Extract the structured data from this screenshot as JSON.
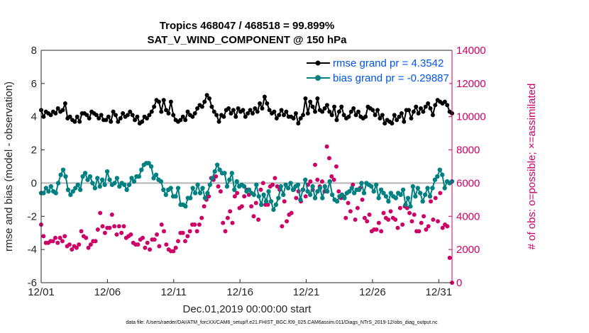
{
  "chart_data": {
    "type": "line",
    "title_line1": "Tropics 468047 / 468518 = 99.899%",
    "title_line2": "SAT_V_WIND_COMPONENT @ 150 hPa",
    "xlabel": "Dec.01,2019 00:00:00 start",
    "ylabel_left": "rmse and bias (model - observation)",
    "ylabel_right": "# of obs: o=possible; ×=assimilated",
    "footnote": "data file: /Users/raeder/DAI/ATM_forcXX/CAM6_setup/f.e21.FHIST_BGC.f09_025.CAM6assim.011/Diags_NTrS_2019-12/obs_diag_output.nc",
    "xlim": [
      1,
      32
    ],
    "ylim_left": [
      -6,
      8
    ],
    "ylim_right": [
      0,
      14000
    ],
    "x_ticks": [
      1,
      6,
      11,
      16,
      21,
      26,
      31
    ],
    "x_tick_labels": [
      "12/01",
      "12/06",
      "12/11",
      "12/16",
      "12/21",
      "12/26",
      "12/31"
    ],
    "y_ticks_left": [
      -6,
      -4,
      -2,
      0,
      2,
      4,
      6,
      8
    ],
    "y_tick_labels_left": [
      "-6",
      "-4",
      "-2",
      "0",
      "2",
      "4",
      "6",
      "8"
    ],
    "y_ticks_right": [
      0,
      2000,
      4000,
      6000,
      8000,
      10000,
      12000,
      14000
    ],
    "y_tick_labels_right": [
      "0",
      "2000",
      "4000",
      "6000",
      "8000",
      "10000",
      "12000",
      "14000"
    ],
    "series": [
      {
        "name": "rmse grand pr = 4.3542",
        "color": "#000000",
        "axis": "left",
        "values": [
          4.4,
          4.0,
          4.3,
          4.2,
          4.1,
          4.3,
          4.2,
          4.5,
          4.3,
          4.4,
          4.8,
          3.9,
          4.0,
          3.8,
          3.7,
          4.0,
          3.7,
          4.2,
          4.2,
          4.1,
          3.9,
          4.3,
          4.2,
          4.1,
          3.9,
          4.1,
          3.8,
          3.8,
          4.0,
          3.7,
          4.3,
          4.1,
          3.7,
          3.9,
          4.2,
          4.0,
          4.1,
          4.3,
          4.1,
          3.8,
          4.0,
          3.6,
          3.7,
          4.0,
          3.9,
          4.1,
          4.3,
          4.6,
          5.0,
          4.9,
          4.3,
          5.0,
          4.4,
          4.2,
          4.9,
          4.1,
          3.8,
          3.7,
          3.8,
          4.0,
          3.8,
          4.3,
          4.1,
          4.0,
          4.2,
          4.5,
          4.7,
          4.6,
          4.9,
          5.3,
          5.1,
          4.6,
          4.3,
          4.1,
          3.7,
          4.1,
          4.0,
          4.4,
          4.5,
          4.2,
          4.4,
          4.0,
          4.5,
          4.3,
          4.4,
          4.0,
          4.2,
          4.4,
          4.2,
          4.5,
          4.3,
          4.8,
          4.5,
          5.2,
          4.8,
          4.4,
          4.2,
          4.3,
          3.9,
          4.1,
          4.4,
          4.1,
          4.3,
          4.0,
          4.0,
          3.9,
          4.2,
          3.6,
          3.9,
          4.1,
          5.1,
          4.2,
          4.9,
          4.6,
          4.3,
          5.1,
          4.4,
          4.3,
          4.5,
          4.7,
          4.3,
          4.1,
          4.6,
          3.8,
          4.3,
          4.6,
          4.1,
          3.9,
          4.0,
          4.3,
          4.5,
          4.1,
          4.3,
          4.0,
          3.9,
          4.0,
          4.6,
          4.5,
          4.4,
          4.1,
          4.4,
          3.9,
          4.1,
          3.6,
          3.8,
          3.7,
          3.6,
          4.1,
          3.8,
          4.0,
          4.2,
          3.7,
          4.4,
          4.4,
          3.9,
          4.3,
          4.6,
          4.2,
          4.5,
          4.3,
          4.6,
          4.8,
          4.5,
          4.1,
          4.7,
          5.0,
          4.9,
          4.8,
          4.9,
          4.7,
          4.3,
          4.2
        ]
      },
      {
        "name": "bias grand pr = -0.29887",
        "color": "#008080",
        "axis": "left",
        "values": [
          -0.6,
          -0.6,
          -0.3,
          -0.5,
          -0.2,
          -0.5,
          -0.6,
          0.0,
          0.5,
          0.8,
          0.4,
          -0.4,
          -0.7,
          -0.5,
          -0.3,
          -0.1,
          -0.4,
          0.4,
          0.6,
          0.2,
          0.4,
          0.0,
          -0.3,
          0.3,
          -0.2,
          0.2,
          -0.1,
          0.7,
          0.2,
          -0.1,
          0.0,
          0.3,
          -0.2,
          0.0,
          -0.1,
          -0.4,
          -0.1,
          0.3,
          0.1,
          0.4,
          0.4,
          0.8,
          1.1,
          1.2,
          1.2,
          1.0,
          0.3,
          0.5,
          0.2,
          0.1,
          -0.4,
          -0.7,
          -0.4,
          -0.3,
          -0.8,
          -0.8,
          -0.3,
          -1.3,
          -1.3,
          -1.4,
          -0.9,
          -0.9,
          -0.3,
          -0.6,
          -0.1,
          -0.6,
          -0.3,
          -0.9,
          -0.6,
          -0.1,
          0.3,
          0.7,
          1.1,
          0.8,
          0.6,
          0.6,
          -0.2,
          0.2,
          0.6,
          -0.4,
          0.1,
          -0.2,
          -0.1,
          -0.2,
          -0.5,
          -0.4,
          -0.6,
          -0.7,
          -0.1,
          -0.8,
          -1.3,
          -0.7,
          -1.1,
          -0.5,
          -1.1,
          -1.6,
          -1.3,
          -0.9,
          -0.2,
          -0.7,
          -0.1,
          -0.3,
          0.0,
          -0.4,
          -0.2,
          -0.1,
          -1.0,
          -0.4,
          0.2,
          -0.5,
          -0.7,
          -0.2,
          -0.9,
          -0.5,
          -0.3,
          -0.9,
          -0.2,
          -0.5,
          0.1,
          -0.7,
          -1.0,
          -1.1,
          -0.8,
          -0.7,
          -0.9,
          -0.6,
          -0.5,
          -0.3,
          -0.6,
          -0.4,
          -0.4,
          0.0,
          -0.6,
          0.0,
          -0.1,
          -0.2,
          -0.5,
          -0.1,
          -0.9,
          -0.4,
          -0.6,
          -0.8,
          -1.1,
          -0.6,
          -0.8,
          -0.9,
          -0.6,
          -0.7,
          -0.4,
          -1.3,
          -0.9,
          -1.4,
          -0.2,
          -0.8,
          -0.3,
          -0.6,
          -1.1,
          -0.7,
          -0.3,
          -0.8,
          -0.3,
          0.2,
          0.4,
          0.8,
          0.5,
          -0.3,
          0.1,
          0.0,
          0.1
        ]
      },
      {
        "name": "# obs assimilated",
        "color": "#cc0066",
        "axis": "right",
        "values": [
          3500,
          2800,
          2400,
          2400,
          2500,
          2500,
          2700,
          2400,
          2700,
          2500,
          2800,
          2200,
          2300,
          2000,
          2200,
          2100,
          2300,
          3100,
          2800,
          2700,
          2100,
          2300,
          2500,
          2500,
          3200,
          4200,
          3400,
          3000,
          3300,
          3300,
          4100,
          3400,
          2900,
          3400,
          3000,
          3400,
          2700,
          2800,
          2900,
          2400,
          2300,
          2300,
          2600,
          2700,
          2100,
          2400,
          2000,
          2600,
          2600,
          2900,
          2200,
          3500,
          3100,
          2300,
          2000,
          1900,
          1900,
          2100,
          2500,
          3000,
          3000,
          2500,
          2800,
          3100,
          3500,
          3500,
          3100,
          3500,
          3900,
          4600,
          5000,
          5200,
          6300,
          6200,
          6400,
          5800,
          5500,
          3600,
          3100,
          3900,
          4300,
          3600,
          5200,
          5400,
          4500,
          4600,
          5200,
          5600,
          5300,
          4600,
          4000,
          4800,
          3800,
          5600,
          6000,
          4700,
          4700,
          5800,
          5900,
          6300,
          5800,
          5600,
          3400,
          4900,
          3700,
          4100,
          4200,
          5600,
          5100,
          5500,
          4900,
          5600,
          5200,
          5900,
          6100,
          5600,
          7100,
          6200,
          5800,
          6100,
          5500,
          8200,
          7500,
          6400,
          6200,
          7000,
          5500,
          5100,
          5200,
          3900,
          4800,
          4300,
          5900,
          3800,
          4500,
          5700,
          5000,
          3900,
          3700,
          4100,
          3100,
          3200,
          3200,
          3600,
          3100,
          4200,
          3900,
          3800,
          4300,
          3900,
          3800,
          3300,
          4500,
          3500,
          4600,
          4500,
          4200,
          3700,
          4100,
          3100,
          3100,
          3600,
          4000,
          3200,
          3400,
          4900,
          3800,
          5100,
          3700,
          5400,
          3300,
          3500,
          3400,
          1500,
          0
        ]
      }
    ],
    "reference_line": 0,
    "legend_position": "top-right"
  }
}
